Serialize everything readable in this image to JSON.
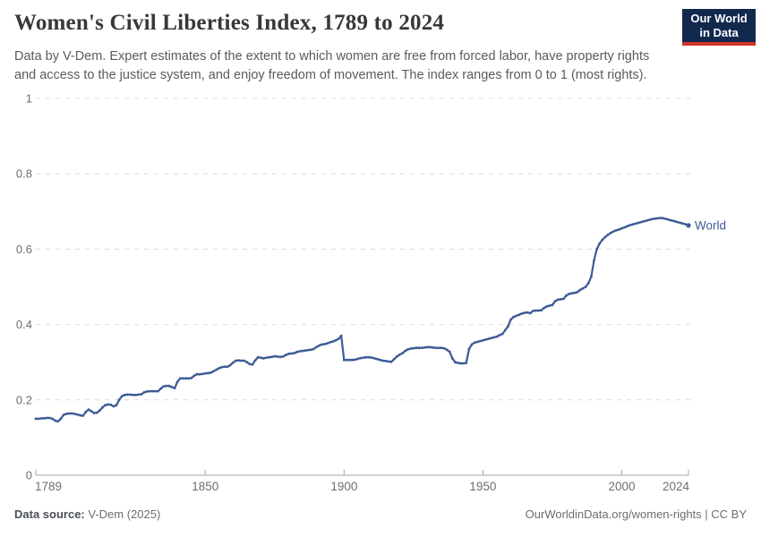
{
  "header": {
    "title": "Women's Civil Liberties Index, 1789 to 2024",
    "subtitle_line1": "Data by V-Dem. Expert estimates of the extent to which women are free from forced labor, have property rights",
    "subtitle_line2": "and access to the justice system, and enjoy freedom of movement. The index ranges from 0 to 1 (most rights)."
  },
  "logo": {
    "line1": "Our World",
    "line2": "in Data",
    "bg_color": "#12294e",
    "accent_color": "#d0352b"
  },
  "chart_data": {
    "type": "line",
    "title": "Women's Civil Liberties Index, 1789 to 2024",
    "xlabel": "",
    "ylabel": "",
    "ylim": [
      0,
      1
    ],
    "x_ticks": [
      1789,
      1850,
      1900,
      1950,
      2000,
      2024
    ],
    "y_ticks": [
      0,
      0.2,
      0.4,
      0.6,
      0.8,
      1
    ],
    "grid": "dashed-horizontal",
    "legend_position": "end-of-line",
    "line_color": "#3d5b96",
    "grid_color": "#dcdcdc",
    "axis_color": "#a5a5a5",
    "axis_label_color": "#6e6e6e",
    "series": [
      {
        "name": "World",
        "start_year": 1789,
        "step": 1,
        "end_year": 2024,
        "values": [
          0.15,
          0.15,
          0.151,
          0.151,
          0.152,
          0.152,
          0.15,
          0.145,
          0.143,
          0.15,
          0.16,
          0.163,
          0.164,
          0.164,
          0.163,
          0.161,
          0.159,
          0.158,
          0.168,
          0.174,
          0.17,
          0.165,
          0.166,
          0.172,
          0.18,
          0.186,
          0.188,
          0.187,
          0.183,
          0.186,
          0.2,
          0.21,
          0.213,
          0.214,
          0.214,
          0.213,
          0.213,
          0.214,
          0.215,
          0.22,
          0.222,
          0.223,
          0.223,
          0.223,
          0.223,
          0.23,
          0.236,
          0.237,
          0.237,
          0.234,
          0.231,
          0.248,
          0.257,
          0.257,
          0.257,
          0.257,
          0.258,
          0.264,
          0.268,
          0.268,
          0.269,
          0.27,
          0.271,
          0.272,
          0.276,
          0.28,
          0.284,
          0.287,
          0.288,
          0.288,
          0.292,
          0.299,
          0.304,
          0.305,
          0.304,
          0.304,
          0.3,
          0.295,
          0.294,
          0.305,
          0.313,
          0.312,
          0.31,
          0.312,
          0.313,
          0.314,
          0.316,
          0.315,
          0.314,
          0.315,
          0.319,
          0.322,
          0.323,
          0.324,
          0.327,
          0.329,
          0.33,
          0.331,
          0.332,
          0.333,
          0.335,
          0.34,
          0.344,
          0.347,
          0.348,
          0.35,
          0.353,
          0.355,
          0.358,
          0.362,
          0.37,
          0.306,
          0.306,
          0.306,
          0.306,
          0.307,
          0.309,
          0.311,
          0.312,
          0.313,
          0.313,
          0.312,
          0.31,
          0.308,
          0.306,
          0.304,
          0.303,
          0.302,
          0.301,
          0.308,
          0.315,
          0.32,
          0.324,
          0.33,
          0.334,
          0.336,
          0.337,
          0.338,
          0.338,
          0.338,
          0.339,
          0.34,
          0.34,
          0.339,
          0.338,
          0.338,
          0.338,
          0.337,
          0.333,
          0.328,
          0.31,
          0.3,
          0.298,
          0.297,
          0.297,
          0.298,
          0.335,
          0.347,
          0.352,
          0.354,
          0.356,
          0.358,
          0.36,
          0.362,
          0.364,
          0.366,
          0.368,
          0.372,
          0.375,
          0.385,
          0.395,
          0.413,
          0.42,
          0.423,
          0.426,
          0.429,
          0.431,
          0.432,
          0.43,
          0.436,
          0.437,
          0.437,
          0.438,
          0.444,
          0.448,
          0.45,
          0.452,
          0.462,
          0.466,
          0.467,
          0.468,
          0.477,
          0.481,
          0.483,
          0.484,
          0.486,
          0.492,
          0.496,
          0.5,
          0.51,
          0.527,
          0.57,
          0.6,
          0.615,
          0.625,
          0.632,
          0.638,
          0.643,
          0.647,
          0.65,
          0.652,
          0.655,
          0.658,
          0.661,
          0.664,
          0.666,
          0.668,
          0.67,
          0.672,
          0.674,
          0.676,
          0.678,
          0.68,
          0.681,
          0.682,
          0.683,
          0.682,
          0.68,
          0.678,
          0.676,
          0.674,
          0.672,
          0.67,
          0.668,
          0.666,
          0.663
        ]
      }
    ]
  },
  "footer": {
    "source_label": "Data source:",
    "source_value": " V-Dem (2025)",
    "right_text": "OurWorldinData.org/women-rights | CC BY"
  }
}
